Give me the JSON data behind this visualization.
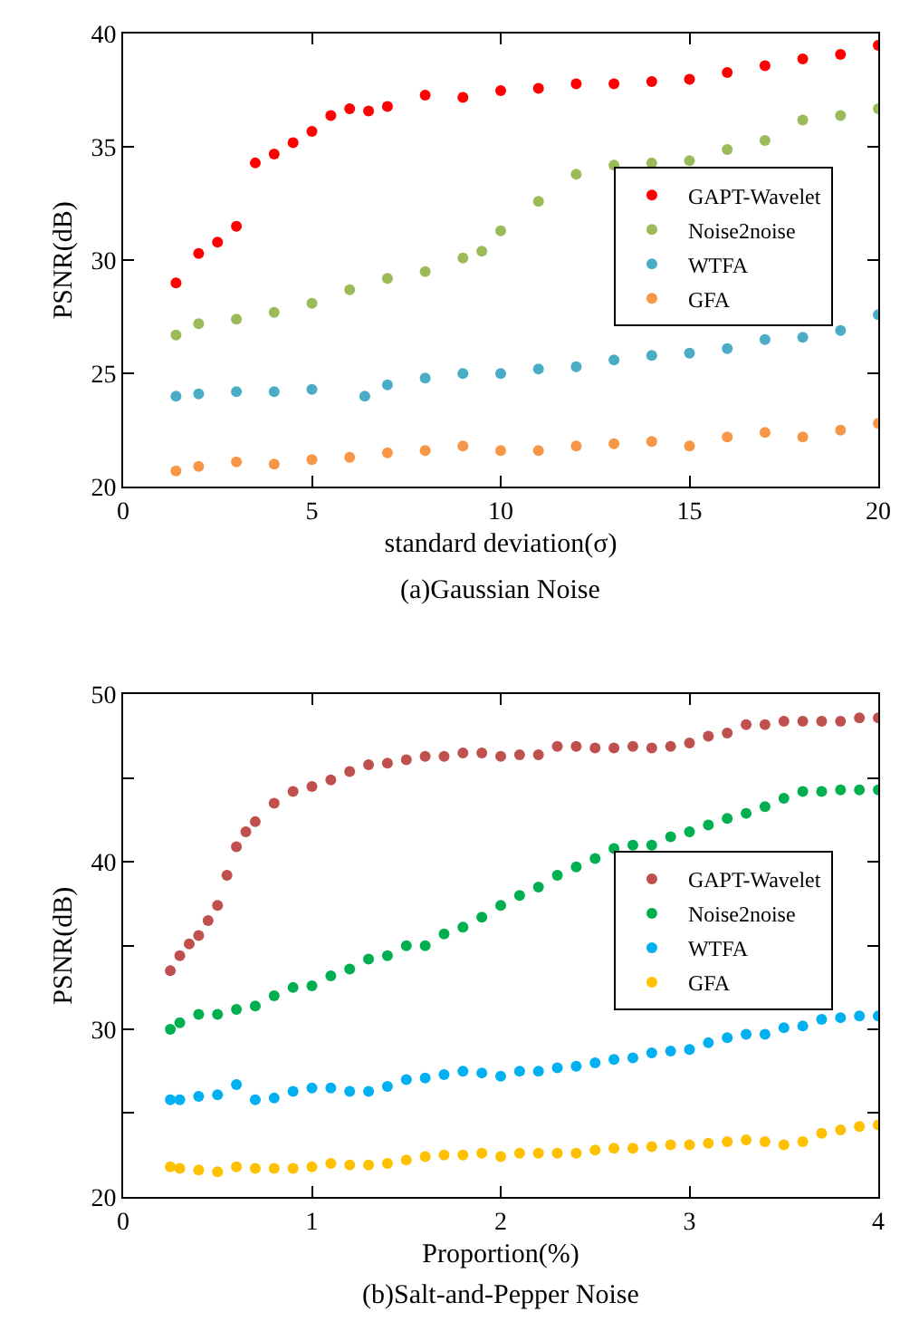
{
  "chart_data": [
    {
      "type": "scatter",
      "title": "(a)Gaussian Noise",
      "xlabel": "standard deviation(σ)",
      "ylabel": "PSNR(dB)",
      "xlim": [
        0,
        20
      ],
      "ylim": [
        20,
        40
      ],
      "xticks": [
        0,
        5,
        10,
        15,
        20
      ],
      "yticks": [
        20,
        25,
        30,
        35,
        40
      ],
      "legend": "right",
      "marker": "circle",
      "series": [
        {
          "name": "GAPT-Wavelet",
          "color": "#ff0000",
          "x": [
            1.4,
            2,
            2.5,
            3,
            3.5,
            4,
            4.5,
            5,
            5.5,
            6,
            6.5,
            7,
            8,
            9,
            10,
            11,
            12,
            13,
            14,
            15,
            16,
            17,
            18,
            19,
            20
          ],
          "values": [
            29.0,
            30.3,
            30.8,
            31.5,
            34.3,
            34.7,
            35.2,
            35.7,
            36.4,
            36.7,
            36.6,
            36.8,
            37.3,
            37.2,
            37.5,
            37.6,
            37.8,
            37.8,
            37.9,
            38.0,
            38.3,
            38.6,
            38.9,
            39.1,
            39.5
          ]
        },
        {
          "name": "Noise2noise",
          "color": "#9bbb59",
          "x": [
            1.4,
            2,
            3,
            4,
            5,
            6,
            7,
            8,
            9,
            9.5,
            10,
            11,
            12,
            13,
            14,
            15,
            16,
            17,
            18,
            19,
            20
          ],
          "values": [
            26.7,
            27.2,
            27.4,
            27.7,
            28.1,
            28.7,
            29.2,
            29.5,
            30.1,
            30.4,
            31.3,
            32.6,
            33.8,
            34.2,
            34.3,
            34.4,
            34.9,
            35.3,
            36.2,
            36.4,
            36.7
          ]
        },
        {
          "name": "WTFA",
          "color": "#4bacc6",
          "x": [
            1.4,
            2,
            3,
            4,
            5,
            6.4,
            7,
            8,
            9,
            10,
            11,
            12,
            13,
            14,
            15,
            16,
            17,
            18,
            19,
            20
          ],
          "values": [
            24.0,
            24.1,
            24.2,
            24.2,
            24.3,
            24.0,
            24.5,
            24.8,
            25.0,
            25.0,
            25.2,
            25.3,
            25.6,
            25.8,
            25.9,
            26.1,
            26.5,
            26.6,
            26.9,
            27.6
          ]
        },
        {
          "name": "GFA",
          "color": "#f79646",
          "x": [
            1.4,
            2,
            3,
            4,
            5,
            6,
            7,
            8,
            9,
            10,
            11,
            12,
            13,
            14,
            15,
            16,
            17,
            18,
            19,
            20
          ],
          "values": [
            20.7,
            20.9,
            21.1,
            21.0,
            21.2,
            21.3,
            21.5,
            21.6,
            21.8,
            21.6,
            21.6,
            21.8,
            21.9,
            22.0,
            21.8,
            22.2,
            22.4,
            22.2,
            22.5,
            22.8
          ]
        }
      ]
    },
    {
      "type": "scatter",
      "title": "(b)Salt-and-Pepper Noise",
      "xlabel": "Proportion(%)",
      "ylabel": "PSNR(dB)",
      "xlim": [
        0,
        4
      ],
      "ylim": [
        20,
        50
      ],
      "xticks": [
        0,
        1,
        2,
        3,
        4
      ],
      "yticks": [
        20,
        {
          "value": 25,
          "label": null
        },
        30,
        {
          "value": 35,
          "label": null
        },
        40,
        {
          "value": 45,
          "label": null
        },
        50
      ],
      "legend": "right",
      "marker": "circle",
      "series": [
        {
          "name": "GAPT-Wavelet",
          "color": "#c0504d",
          "x": [
            0.25,
            0.3,
            0.35,
            0.4,
            0.45,
            0.5,
            0.55,
            0.6,
            0.65,
            0.7,
            0.8,
            0.9,
            1.0,
            1.1,
            1.2,
            1.3,
            1.4,
            1.5,
            1.6,
            1.7,
            1.8,
            1.9,
            2.0,
            2.1,
            2.2,
            2.3,
            2.4,
            2.5,
            2.6,
            2.7,
            2.8,
            2.9,
            3.0,
            3.1,
            3.2,
            3.3,
            3.4,
            3.5,
            3.6,
            3.7,
            3.8,
            3.9,
            4.0
          ],
          "values": [
            33.5,
            34.4,
            35.1,
            35.6,
            36.5,
            37.4,
            39.2,
            40.9,
            41.8,
            42.4,
            43.5,
            44.2,
            44.5,
            44.9,
            45.4,
            45.8,
            45.9,
            46.1,
            46.3,
            46.3,
            46.5,
            46.5,
            46.3,
            46.4,
            46.4,
            46.9,
            46.9,
            46.8,
            46.8,
            46.9,
            46.8,
            46.9,
            47.1,
            47.5,
            47.7,
            48.2,
            48.2,
            48.4,
            48.4,
            48.4,
            48.4,
            48.6,
            48.6
          ]
        },
        {
          "name": "Noise2noise",
          "color": "#00b050",
          "x": [
            0.25,
            0.3,
            0.4,
            0.5,
            0.6,
            0.7,
            0.8,
            0.9,
            1.0,
            1.1,
            1.2,
            1.3,
            1.4,
            1.5,
            1.6,
            1.7,
            1.8,
            1.9,
            2.0,
            2.1,
            2.2,
            2.3,
            2.4,
            2.5,
            2.6,
            2.7,
            2.8,
            2.9,
            3.0,
            3.1,
            3.2,
            3.3,
            3.4,
            3.5,
            3.6,
            3.7,
            3.8,
            3.9,
            4.0
          ],
          "values": [
            30.0,
            30.4,
            30.9,
            30.9,
            31.2,
            31.4,
            32.0,
            32.5,
            32.6,
            33.2,
            33.6,
            34.2,
            34.4,
            35.0,
            35.0,
            35.7,
            36.1,
            36.7,
            37.4,
            38.0,
            38.5,
            39.2,
            39.7,
            40.2,
            40.8,
            41.0,
            41.0,
            41.5,
            41.8,
            42.2,
            42.6,
            42.9,
            43.3,
            43.8,
            44.2,
            44.2,
            44.3,
            44.3,
            44.3
          ]
        },
        {
          "name": "WTFA",
          "color": "#00b0f0",
          "x": [
            0.25,
            0.3,
            0.4,
            0.5,
            0.6,
            0.7,
            0.8,
            0.9,
            1.0,
            1.1,
            1.2,
            1.3,
            1.4,
            1.5,
            1.6,
            1.7,
            1.8,
            1.9,
            2.0,
            2.1,
            2.2,
            2.3,
            2.4,
            2.5,
            2.6,
            2.7,
            2.8,
            2.9,
            3.0,
            3.1,
            3.2,
            3.3,
            3.4,
            3.5,
            3.6,
            3.7,
            3.8,
            3.9,
            4.0
          ],
          "values": [
            25.8,
            25.8,
            26.0,
            26.1,
            26.7,
            25.8,
            25.9,
            26.3,
            26.5,
            26.5,
            26.3,
            26.3,
            26.6,
            27.0,
            27.1,
            27.3,
            27.5,
            27.4,
            27.2,
            27.5,
            27.5,
            27.7,
            27.8,
            28.0,
            28.2,
            28.3,
            28.6,
            28.7,
            28.8,
            29.2,
            29.5,
            29.7,
            29.7,
            30.1,
            30.2,
            30.6,
            30.7,
            30.8,
            30.8
          ]
        },
        {
          "name": "GFA",
          "color": "#ffc000",
          "x": [
            0.25,
            0.3,
            0.4,
            0.5,
            0.6,
            0.7,
            0.8,
            0.9,
            1.0,
            1.1,
            1.2,
            1.3,
            1.4,
            1.5,
            1.6,
            1.7,
            1.8,
            1.9,
            2.0,
            2.1,
            2.2,
            2.3,
            2.4,
            2.5,
            2.6,
            2.7,
            2.8,
            2.9,
            3.0,
            3.1,
            3.2,
            3.3,
            3.4,
            3.5,
            3.6,
            3.7,
            3.8,
            3.9,
            4.0
          ],
          "values": [
            21.8,
            21.7,
            21.6,
            21.5,
            21.8,
            21.7,
            21.7,
            21.7,
            21.8,
            22.0,
            21.9,
            21.9,
            22.0,
            22.2,
            22.4,
            22.5,
            22.5,
            22.6,
            22.4,
            22.6,
            22.6,
            22.6,
            22.6,
            22.8,
            22.9,
            22.9,
            23.0,
            23.1,
            23.1,
            23.2,
            23.3,
            23.4,
            23.3,
            23.1,
            23.3,
            23.8,
            24.0,
            24.2,
            24.3
          ]
        }
      ]
    }
  ]
}
